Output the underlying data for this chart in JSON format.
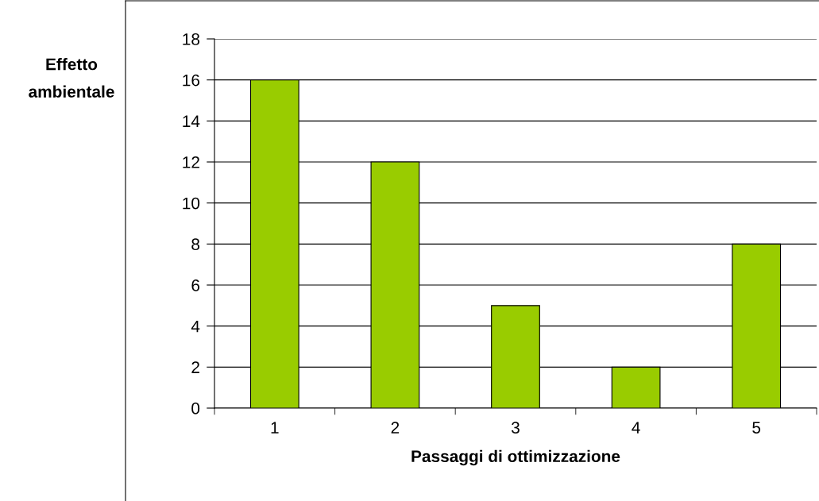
{
  "chart_data": {
    "type": "bar",
    "xlabel": "Passaggi di ottimizzazione",
    "ylabel": "Effetto\nambientale",
    "categories": [
      "1",
      "2",
      "3",
      "4",
      "5"
    ],
    "values": [
      16,
      12,
      5,
      2,
      8
    ],
    "color": "#99cc00",
    "ylim": [
      0,
      18
    ],
    "yticks": [
      0,
      2,
      4,
      6,
      8,
      10,
      12,
      14,
      16,
      18
    ],
    "grid": "y",
    "legend": false
  }
}
